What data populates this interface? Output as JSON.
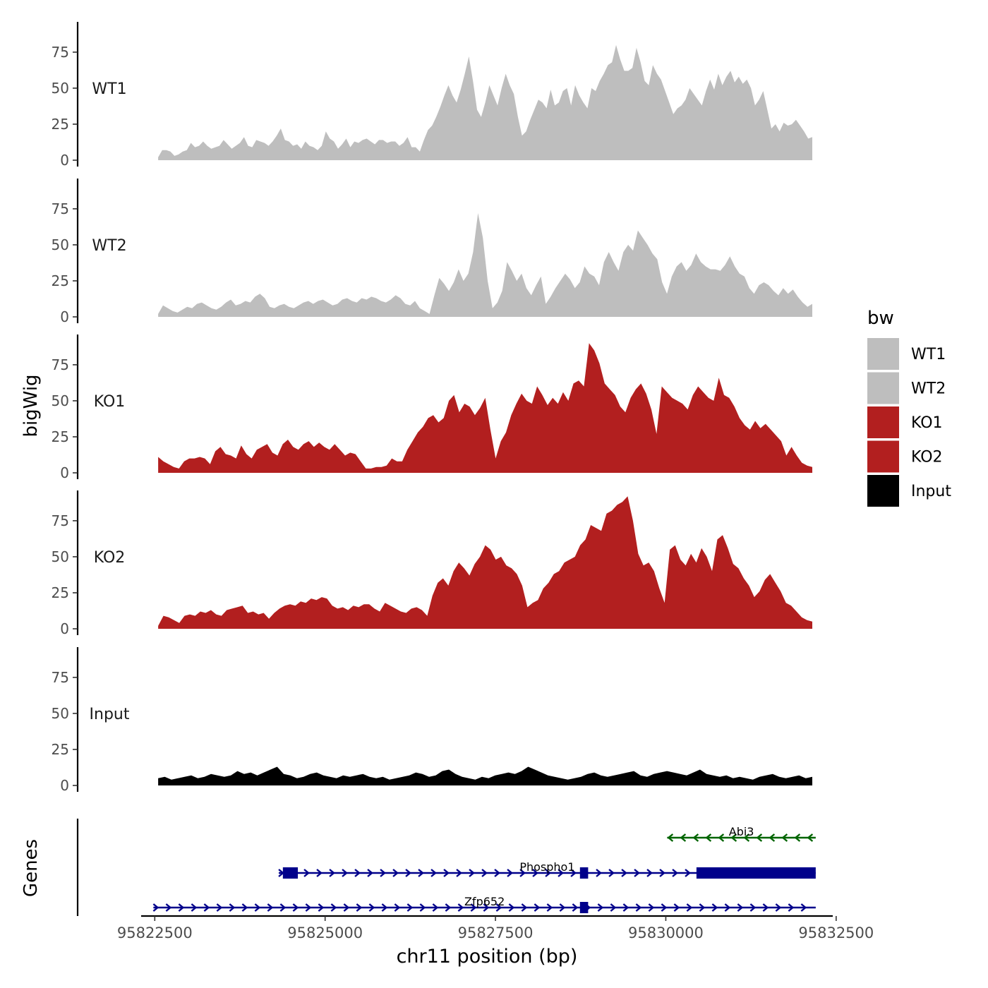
{
  "chart_data": {
    "type": "area",
    "title": "",
    "ylabel": "bigWig",
    "genes_label": "Genes",
    "xlabel": "chr11 position (bp)",
    "xlim": [
      95822300,
      95832450
    ],
    "ylim": [
      0,
      96
    ],
    "x_ticks": [
      95822500,
      95825000,
      95827500,
      95830000,
      95832500
    ],
    "y_ticks": [
      0,
      25,
      50,
      75
    ],
    "x_start": 95822550,
    "x_end": 95832150,
    "legend": {
      "title": "bw",
      "position": "right",
      "entries": [
        {
          "label": "WT1",
          "color": "#bebebe"
        },
        {
          "label": "WT2",
          "color": "#bebebe"
        },
        {
          "label": "KO1",
          "color": "#b21f1f"
        },
        {
          "label": "KO2",
          "color": "#b21f1f"
        },
        {
          "label": "Input",
          "color": "#000000"
        }
      ]
    },
    "series": [
      {
        "name": "WT1",
        "color": "#bebebe",
        "values": [
          2,
          7,
          7,
          6,
          3,
          4,
          6,
          7,
          12,
          9,
          10,
          13,
          10,
          8,
          9,
          10,
          14,
          11,
          8,
          10,
          12,
          16,
          10,
          9,
          14,
          13,
          12,
          10,
          13,
          17,
          22,
          14,
          13,
          10,
          11,
          8,
          13,
          10,
          9,
          7,
          10,
          20,
          15,
          13,
          8,
          11,
          15,
          9,
          13,
          12,
          14,
          15,
          13,
          11,
          14,
          14,
          12,
          13,
          13,
          10,
          12,
          16,
          9,
          9,
          6,
          14,
          21,
          24,
          30,
          37,
          45,
          52,
          45,
          40,
          49,
          60,
          72,
          55,
          35,
          30,
          40,
          52,
          45,
          38,
          50,
          60,
          52,
          46,
          30,
          17,
          20,
          28,
          35,
          42,
          40,
          36,
          49,
          38,
          40,
          48,
          50,
          38,
          52,
          45,
          40,
          36,
          50,
          48,
          55,
          60,
          66,
          68,
          80,
          70,
          62,
          62,
          64,
          78,
          68,
          55,
          52,
          66,
          60,
          56,
          48,
          40,
          32,
          36,
          38,
          42,
          50,
          46,
          42,
          38,
          48,
          56,
          49,
          60,
          52,
          58,
          62,
          54,
          58,
          53,
          56,
          50,
          38,
          42,
          48,
          35,
          22,
          25,
          20,
          26,
          24,
          25,
          28,
          24,
          20,
          15,
          16
        ]
      },
      {
        "name": "WT2",
        "color": "#bebebe",
        "values": [
          2,
          8,
          6,
          4,
          3,
          5,
          7,
          6,
          9,
          10,
          8,
          6,
          5,
          7,
          10,
          12,
          8,
          9,
          11,
          10,
          14,
          16,
          13,
          7,
          6,
          8,
          9,
          7,
          6,
          8,
          10,
          11,
          9,
          11,
          12,
          10,
          8,
          9,
          12,
          13,
          11,
          10,
          13,
          12,
          14,
          13,
          11,
          10,
          12,
          15,
          13,
          9,
          8,
          11,
          6,
          4,
          2,
          15,
          27,
          23,
          18,
          24,
          33,
          25,
          30,
          45,
          72,
          55,
          25,
          6,
          10,
          18,
          38,
          32,
          25,
          30,
          20,
          15,
          22,
          28,
          9,
          14,
          20,
          25,
          30,
          26,
          20,
          24,
          35,
          30,
          28,
          22,
          38,
          45,
          38,
          32,
          45,
          50,
          46,
          60,
          55,
          50,
          44,
          40,
          24,
          16,
          28,
          35,
          38,
          32,
          36,
          44,
          38,
          35,
          33,
          33,
          32,
          36,
          42,
          35,
          30,
          28,
          20,
          16,
          22,
          24,
          22,
          18,
          15,
          20,
          16,
          19,
          14,
          10,
          7,
          9
        ]
      },
      {
        "name": "KO1",
        "color": "#b21f1f",
        "values": [
          11,
          8,
          6,
          4,
          3,
          8,
          10,
          10,
          11,
          10,
          6,
          15,
          18,
          13,
          12,
          10,
          19,
          13,
          10,
          16,
          18,
          20,
          14,
          12,
          20,
          23,
          18,
          16,
          20,
          22,
          18,
          21,
          18,
          16,
          20,
          16,
          12,
          14,
          13,
          8,
          3,
          3,
          4,
          4,
          5,
          10,
          8,
          8,
          16,
          22,
          28,
          32,
          38,
          40,
          35,
          38,
          50,
          54,
          42,
          48,
          46,
          40,
          45,
          52,
          30,
          10,
          22,
          28,
          40,
          48,
          55,
          50,
          48,
          60,
          54,
          47,
          52,
          48,
          56,
          50,
          62,
          64,
          60,
          90,
          85,
          76,
          62,
          58,
          54,
          46,
          42,
          52,
          58,
          62,
          55,
          44,
          27,
          60,
          56,
          52,
          50,
          48,
          44,
          54,
          60,
          56,
          52,
          50,
          66,
          54,
          52,
          46,
          38,
          33,
          30,
          36,
          31,
          34,
          30,
          26,
          22,
          12,
          18,
          12,
          7,
          5,
          4
        ]
      },
      {
        "name": "KO2",
        "color": "#b21f1f",
        "values": [
          2,
          9,
          8,
          6,
          4,
          9,
          10,
          9,
          12,
          11,
          13,
          10,
          9,
          13,
          14,
          15,
          16,
          11,
          12,
          10,
          11,
          7,
          11,
          14,
          16,
          17,
          16,
          19,
          18,
          21,
          20,
          22,
          21,
          16,
          14,
          15,
          13,
          16,
          15,
          17,
          17,
          14,
          12,
          18,
          16,
          14,
          12,
          11,
          14,
          15,
          13,
          9,
          23,
          32,
          35,
          30,
          40,
          46,
          42,
          37,
          45,
          50,
          58,
          55,
          48,
          50,
          44,
          42,
          38,
          30,
          15,
          18,
          20,
          28,
          32,
          38,
          40,
          46,
          48,
          50,
          58,
          62,
          72,
          70,
          68,
          80,
          82,
          86,
          88,
          92,
          75,
          52,
          44,
          46,
          40,
          28,
          18,
          55,
          58,
          48,
          44,
          52,
          46,
          56,
          50,
          40,
          62,
          65,
          56,
          45,
          42,
          35,
          30,
          22,
          26,
          34,
          38,
          32,
          26,
          18,
          16,
          12,
          8,
          6,
          5
        ]
      },
      {
        "name": "Input",
        "color": "#000000",
        "values": [
          5,
          6,
          4,
          5,
          6,
          7,
          5,
          6,
          8,
          7,
          6,
          7,
          10,
          8,
          9,
          7,
          9,
          11,
          13,
          8,
          7,
          5,
          6,
          8,
          9,
          7,
          6,
          5,
          7,
          6,
          7,
          8,
          6,
          5,
          6,
          4,
          5,
          6,
          7,
          9,
          8,
          6,
          7,
          10,
          11,
          8,
          6,
          5,
          4,
          6,
          5,
          7,
          8,
          9,
          8,
          10,
          13,
          11,
          9,
          7,
          6,
          5,
          4,
          5,
          6,
          8,
          9,
          7,
          6,
          7,
          8,
          9,
          10,
          7,
          6,
          8,
          9,
          10,
          9,
          8,
          7,
          9,
          11,
          8,
          7,
          6,
          7,
          5,
          6,
          5,
          4,
          6,
          7,
          8,
          6,
          5,
          6,
          7,
          5,
          6
        ]
      }
    ],
    "genes": [
      {
        "name": "Abi3",
        "strand": "-",
        "color": "#006400",
        "start": 95830020,
        "end": 95832200,
        "exons": []
      },
      {
        "name": "Phospho1",
        "strand": "+",
        "color": "#00008b",
        "start": 95824320,
        "end": 95832200,
        "exons": [
          [
            95824380,
            95824600
          ],
          [
            95828740,
            95828860
          ],
          [
            95830450,
            95832200
          ]
        ]
      },
      {
        "name": "Zfp652",
        "strand": "+",
        "color": "#00008b",
        "start": 95822480,
        "end": 95832200,
        "exons": [
          [
            95828740,
            95828860
          ]
        ]
      }
    ]
  }
}
